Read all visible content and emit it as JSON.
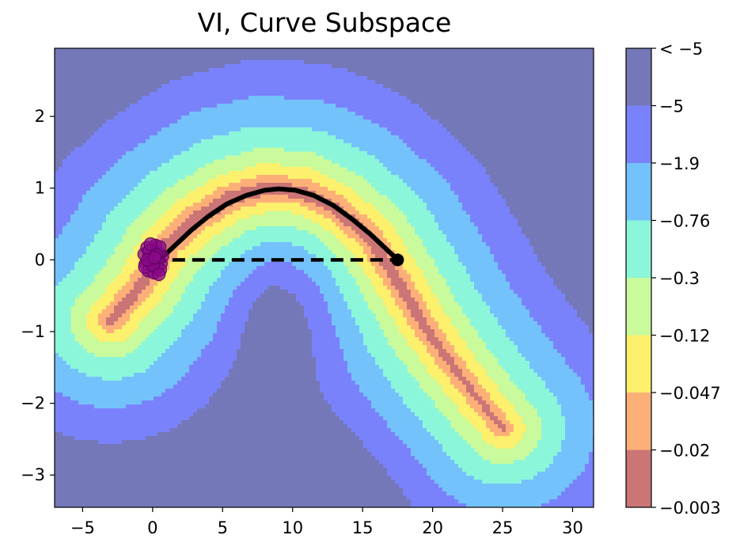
{
  "chart_data": {
    "type": "contour",
    "title": "VI, Curve Subspace",
    "xlabel": "",
    "ylabel": "",
    "xlim": [
      -7,
      31.5
    ],
    "ylim": [
      -3.45,
      2.95
    ],
    "x_ticks": [
      -5,
      0,
      5,
      10,
      15,
      20,
      25,
      30
    ],
    "x_tick_labels": [
      "−5",
      "0",
      "5",
      "10",
      "15",
      "20",
      "25",
      "30"
    ],
    "y_ticks": [
      2,
      1,
      0,
      -1,
      -2,
      -3
    ],
    "y_tick_labels": [
      "2",
      "1",
      "0",
      "−1",
      "−2",
      "−3"
    ],
    "grid": false,
    "colorbar": {
      "levels": [
        {
          "label": "< −5",
          "color": "#7478b8"
        },
        {
          "label": "−5",
          "color": "#7a82fb"
        },
        {
          "label": "−1.9",
          "color": "#74c2fb"
        },
        {
          "label": "−0.76",
          "color": "#8bf6da"
        },
        {
          "label": "−0.3",
          "color": "#c9fa9c"
        },
        {
          "label": "−0.12",
          "color": "#fdf06c"
        },
        {
          "label": "−0.047",
          "color": "#fcb078"
        },
        {
          "label": "−0.02",
          "color": "#cb7576"
        },
        {
          "label": "−0.003",
          "color": ""
        }
      ],
      "line_colors": [
        "#0a12e6",
        "#36a6f5",
        "#18e8e8",
        "#8ef09a",
        "#e6f21a",
        "#fcaa3a",
        "#f02c1a"
      ]
    },
    "curve": {
      "type": "line",
      "color": "#000000",
      "x": [
        0.5,
        1.6,
        2.8,
        4.0,
        5.3,
        6.7,
        8.0,
        9.0,
        10.2,
        11.5,
        12.9,
        14.3,
        15.6,
        16.8,
        17.5
      ],
      "y": [
        0.0,
        0.2,
        0.42,
        0.61,
        0.78,
        0.9,
        0.97,
        0.99,
        0.97,
        0.9,
        0.76,
        0.56,
        0.35,
        0.13,
        0.0
      ]
    },
    "segment": {
      "type": "line",
      "style": "dashed",
      "color": "#000000",
      "x": [
        0.0,
        17.5
      ],
      "y": [
        0.0,
        0.0
      ]
    },
    "endpoint": {
      "x": 17.5,
      "y": 0.0,
      "color": "#000000"
    },
    "samples": {
      "type": "scatter",
      "color": "#8a0a8a",
      "x": [
        -0.2,
        0.4,
        -0.5,
        0.6,
        0.0,
        -0.3,
        0.3,
        0.7,
        -0.6,
        0.2,
        -0.1,
        0.5,
        -0.4,
        0.1,
        0.35,
        -0.25,
        0.55,
        -0.55,
        0.05,
        0.25,
        -0.15,
        0.45,
        -0.35,
        0.15
      ],
      "y": [
        0.05,
        0.1,
        -0.05,
        -0.05,
        0.15,
        -0.15,
        -0.12,
        0.05,
        0.08,
        0.2,
        -0.02,
        0.18,
        0.17,
        -0.18,
        0.0,
        0.12,
        -0.14,
        -0.1,
        -0.08,
        0.07,
        0.22,
        -0.2,
        0.0,
        0.03
      ]
    }
  }
}
